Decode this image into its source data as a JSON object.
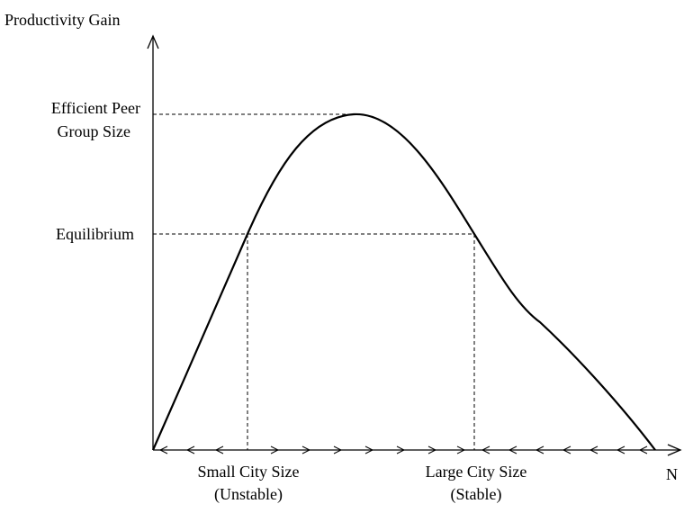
{
  "axes": {
    "y_label": "Productivity Gain",
    "x_label": "N"
  },
  "levels": [
    {
      "lines": [
        "Efficient Peer",
        "Group Size"
      ]
    },
    {
      "lines": [
        "Equilibrium"
      ]
    }
  ],
  "city_sizes": [
    {
      "lines": [
        "Small City Size",
        "(Unstable)"
      ]
    },
    {
      "lines": [
        "Large City Size",
        "(Stable)"
      ]
    }
  ]
}
